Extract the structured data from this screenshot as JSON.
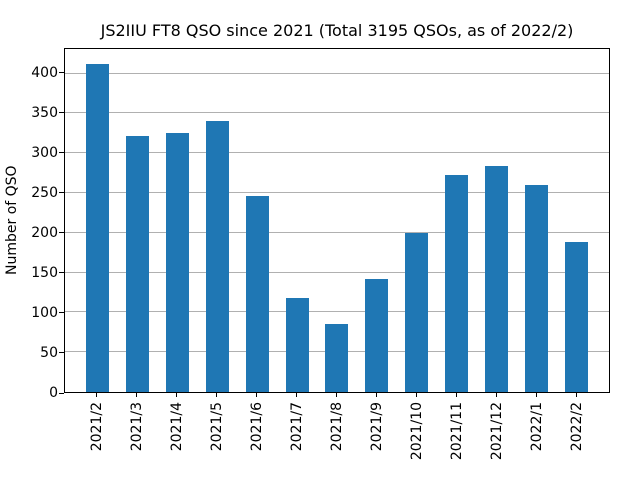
{
  "chart_data": {
    "type": "bar",
    "title": "JS2IIU FT8 QSO since 2021 (Total 3195 QSOs, as of 2022/2)",
    "xlabel": "",
    "ylabel": "Number of QSO",
    "categories": [
      "2021/2",
      "2021/3",
      "2021/4",
      "2021/5",
      "2021/6",
      "2021/7",
      "2021/8",
      "2021/9",
      "2021/10",
      "2021/11",
      "2021/12",
      "2022/1",
      "2022/2"
    ],
    "values": [
      412,
      322,
      325,
      340,
      246,
      118,
      85,
      142,
      200,
      273,
      284,
      260,
      188
    ],
    "total_qsos": 3195,
    "yticks": [
      0,
      50,
      100,
      150,
      200,
      250,
      300,
      350,
      400
    ],
    "ylim": [
      0,
      431
    ],
    "grid": "horizontal",
    "legend": "none",
    "x_tick_rotation_deg": 90,
    "bar_color": "#1f77b4",
    "grid_color": "#b0b0b0",
    "spine_color": "#000000",
    "background_color": "#ffffff"
  }
}
